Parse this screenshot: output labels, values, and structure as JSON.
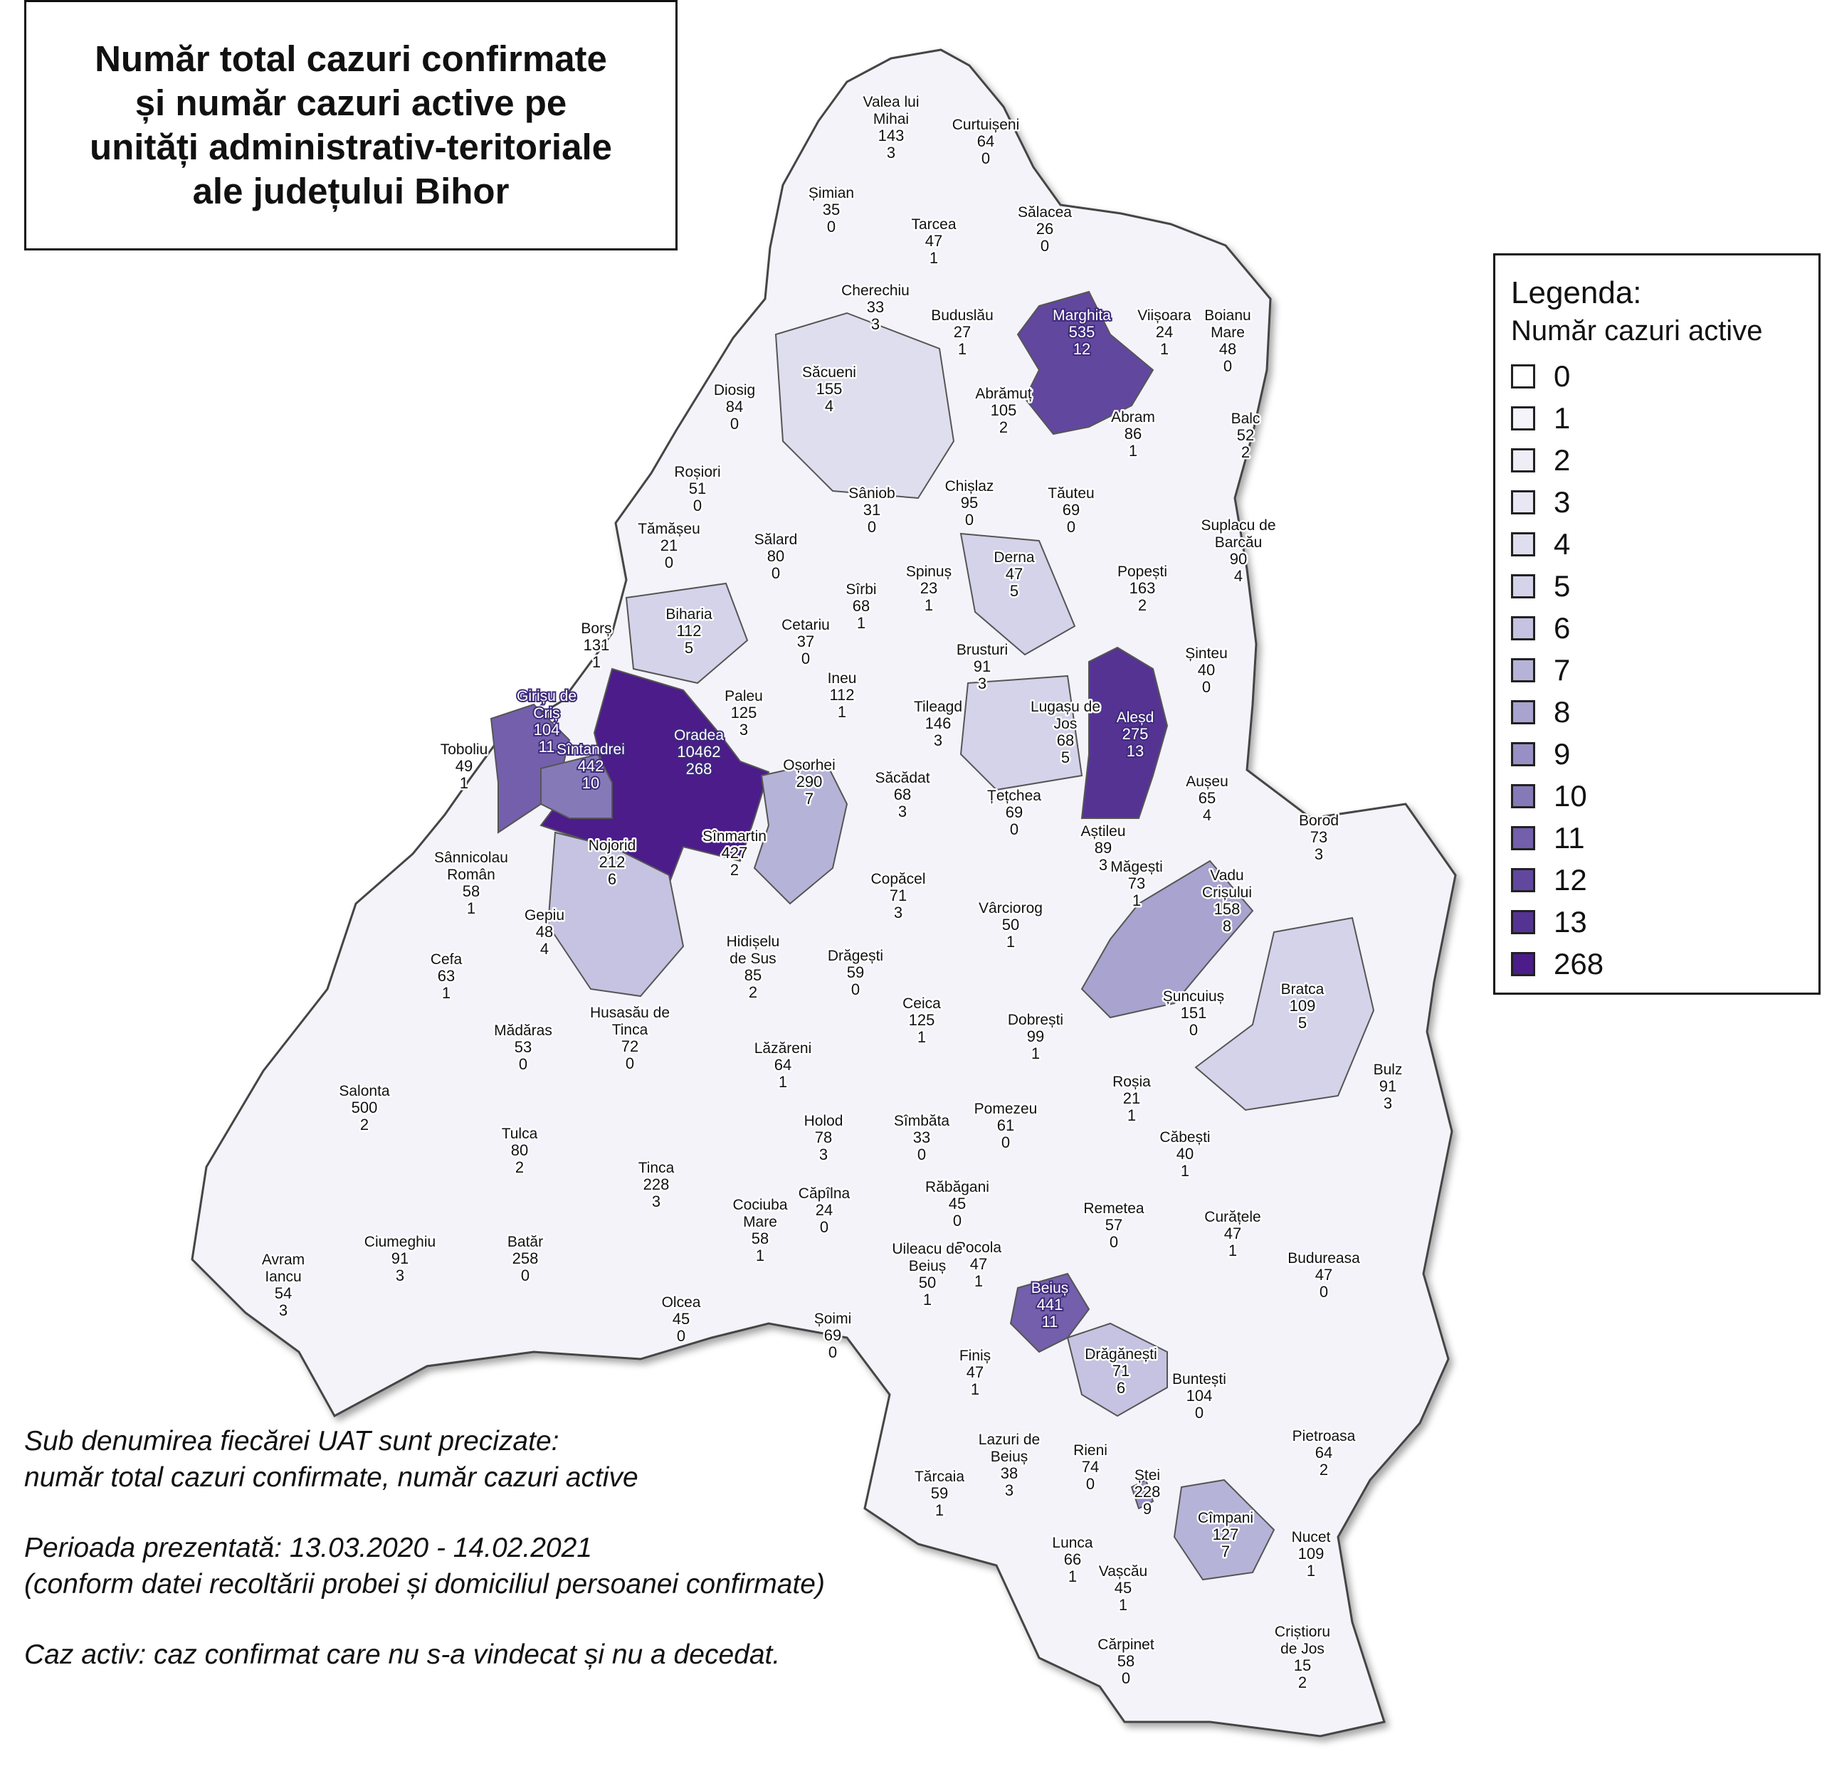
{
  "title": {
    "lines": [
      "Număr total cazuri confirmate",
      "și număr cazuri active pe",
      "unități administrativ-teritoriale",
      "ale județului Bihor"
    ]
  },
  "legend": {
    "title": "Legenda:",
    "subtitle": "Număr cazuri active",
    "items": [
      {
        "label": "0",
        "color": "#ffffff"
      },
      {
        "label": "1",
        "color": "#f5f4fa"
      },
      {
        "label": "2",
        "color": "#efeef7"
      },
      {
        "label": "3",
        "color": "#e8e7f3"
      },
      {
        "label": "4",
        "color": "#dfdeee"
      },
      {
        "label": "5",
        "color": "#d4d3ea"
      },
      {
        "label": "6",
        "color": "#c5c3e1"
      },
      {
        "label": "7",
        "color": "#b6b3d8"
      },
      {
        "label": "8",
        "color": "#a8a3cf"
      },
      {
        "label": "9",
        "color": "#9890c4"
      },
      {
        "label": "10",
        "color": "#8679b8"
      },
      {
        "label": "11",
        "color": "#735fab"
      },
      {
        "label": "12",
        "color": "#62479f"
      },
      {
        "label": "13",
        "color": "#553393"
      },
      {
        "label": "268",
        "color": "#4b1c8a"
      }
    ]
  },
  "notes": {
    "line1": "Sub denumirea fiecărei UAT sunt precizate:",
    "line2": "număr total cazuri confirmate, număr cazuri active",
    "line3": "Perioada prezentată: 13.03.2020 - 14.02.2021",
    "line4": "(conform datei recoltării probei și domiciliul persoanei confirmate)",
    "line5": "Caz activ: caz confirmat care nu s-a vindecat și nu a decedat."
  },
  "uats": [
    {
      "name": [
        "Valea lui",
        "Mihai"
      ],
      "total": "143",
      "active": 3
    },
    {
      "name": [
        "Curtuișeni"
      ],
      "total": "64",
      "active": 0
    },
    {
      "name": [
        "Șimian"
      ],
      "total": "35",
      "active": 0
    },
    {
      "name": [
        "Tarcea"
      ],
      "total": "47",
      "active": 1
    },
    {
      "name": [
        "Sălacea"
      ],
      "total": "26",
      "active": 0
    },
    {
      "name": [
        "Cherechiu"
      ],
      "total": "33",
      "active": 3
    },
    {
      "name": [
        "Buduslău"
      ],
      "total": "27",
      "active": 1
    },
    {
      "name": [
        "Marghita"
      ],
      "total": "535",
      "active": 12
    },
    {
      "name": [
        "Viișoara"
      ],
      "total": "24",
      "active": 1
    },
    {
      "name": [
        "Boianu",
        "Mare"
      ],
      "total": "48",
      "active": 0
    },
    {
      "name": [
        "Săcueni"
      ],
      "total": "155",
      "active": 4
    },
    {
      "name": [
        "Diosig"
      ],
      "total": "84",
      "active": 0
    },
    {
      "name": [
        "Abrămuț"
      ],
      "total": "105",
      "active": 2
    },
    {
      "name": [
        "Abram"
      ],
      "total": "86",
      "active": 1
    },
    {
      "name": [
        "Balc"
      ],
      "total": "52",
      "active": 2
    },
    {
      "name": [
        "Roșiori"
      ],
      "total": "51",
      "active": 0
    },
    {
      "name": [
        "Sâniob"
      ],
      "total": "31",
      "active": 0
    },
    {
      "name": [
        "Chișlaz"
      ],
      "total": "95",
      "active": 0
    },
    {
      "name": [
        "Tăuteu"
      ],
      "total": "69",
      "active": 0
    },
    {
      "name": [
        "Suplacu de",
        "Barcău"
      ],
      "total": "90",
      "active": 4
    },
    {
      "name": [
        "Tămășeu"
      ],
      "total": "21",
      "active": 0
    },
    {
      "name": [
        "Sălard"
      ],
      "total": "80",
      "active": 0
    },
    {
      "name": [
        "Derna"
      ],
      "total": "47",
      "active": 5
    },
    {
      "name": [
        "Popești"
      ],
      "total": "163",
      "active": 2
    },
    {
      "name": [
        "Spinuș"
      ],
      "total": "23",
      "active": 1
    },
    {
      "name": [
        "Sîrbi"
      ],
      "total": "68",
      "active": 1
    },
    {
      "name": [
        "Biharia"
      ],
      "total": "112",
      "active": 5
    },
    {
      "name": [
        "Borș"
      ],
      "total": "131",
      "active": 1
    },
    {
      "name": [
        "Cetariu"
      ],
      "total": "37",
      "active": 0
    },
    {
      "name": [
        "Brusturi"
      ],
      "total": "91",
      "active": 3
    },
    {
      "name": [
        "Șinteu"
      ],
      "total": "40",
      "active": 0
    },
    {
      "name": [
        "Ineu"
      ],
      "total": "112",
      "active": 1
    },
    {
      "name": [
        "Girișu de",
        "Criș"
      ],
      "total": "104",
      "active": 11
    },
    {
      "name": [
        "Paleu"
      ],
      "total": "125",
      "active": 3
    },
    {
      "name": [
        "Tileagd"
      ],
      "total": "146",
      "active": 3
    },
    {
      "name": [
        "Lugașu de",
        "Jos"
      ],
      "total": "68",
      "active": 5
    },
    {
      "name": [
        "Aleșd"
      ],
      "total": "275",
      "active": 13
    },
    {
      "name": [
        "Oradea"
      ],
      "total": "10462",
      "active": 268
    },
    {
      "name": [
        "Toboliu"
      ],
      "total": "49",
      "active": 1
    },
    {
      "name": [
        "Sîntandrei"
      ],
      "total": "442",
      "active": 10
    },
    {
      "name": [
        "Oșorhei"
      ],
      "total": "290",
      "active": 7
    },
    {
      "name": [
        "Săcădat"
      ],
      "total": "68",
      "active": 3
    },
    {
      "name": [
        "Aușeu"
      ],
      "total": "65",
      "active": 4
    },
    {
      "name": [
        "Țețchea"
      ],
      "total": "69",
      "active": 0
    },
    {
      "name": [
        "Borod"
      ],
      "total": "73",
      "active": 3
    },
    {
      "name": [
        "Aștileu"
      ],
      "total": "89",
      "active": 3
    },
    {
      "name": [
        "Nojorid"
      ],
      "total": "212",
      "active": 6
    },
    {
      "name": [
        "Sînmartin"
      ],
      "total": "427",
      "active": 2
    },
    {
      "name": [
        "Sânnicolau",
        "Român"
      ],
      "total": "58",
      "active": 1
    },
    {
      "name": [
        "Copăcel"
      ],
      "total": "71",
      "active": 3
    },
    {
      "name": [
        "Măgești"
      ],
      "total": "73",
      "active": 1
    },
    {
      "name": [
        "Vadu",
        "Crișului"
      ],
      "total": "158",
      "active": 8
    },
    {
      "name": [
        "Gepiu"
      ],
      "total": "48",
      "active": 4
    },
    {
      "name": [
        "Vârciorog"
      ],
      "total": "50",
      "active": 1
    },
    {
      "name": [
        "Cefa"
      ],
      "total": "63",
      "active": 1
    },
    {
      "name": [
        "Hidișelu",
        "de Sus"
      ],
      "total": "85",
      "active": 2
    },
    {
      "name": [
        "Drăgești"
      ],
      "total": "59",
      "active": 0
    },
    {
      "name": [
        "Bratca"
      ],
      "total": "109",
      "active": 5
    },
    {
      "name": [
        "Ceica"
      ],
      "total": "125",
      "active": 1
    },
    {
      "name": [
        "Șuncuiuș"
      ],
      "total": "151",
      "active": 0
    },
    {
      "name": [
        "Husasău de",
        "Tinca"
      ],
      "total": "72",
      "active": 0
    },
    {
      "name": [
        "Dobrești"
      ],
      "total": "99",
      "active": 1
    },
    {
      "name": [
        "Mădăras"
      ],
      "total": "53",
      "active": 0
    },
    {
      "name": [
        "Lăzăreni"
      ],
      "total": "64",
      "active": 1
    },
    {
      "name": [
        "Bulz"
      ],
      "total": "91",
      "active": 3
    },
    {
      "name": [
        "Salonta"
      ],
      "total": "500",
      "active": 2
    },
    {
      "name": [
        "Roșia"
      ],
      "total": "21",
      "active": 1
    },
    {
      "name": [
        "Holod"
      ],
      "total": "78",
      "active": 3
    },
    {
      "name": [
        "Pomezeu"
      ],
      "total": "61",
      "active": 0
    },
    {
      "name": [
        "Sîmbăta"
      ],
      "total": "33",
      "active": 0
    },
    {
      "name": [
        "Tulca"
      ],
      "total": "80",
      "active": 2
    },
    {
      "name": [
        "Căbești"
      ],
      "total": "40",
      "active": 1
    },
    {
      "name": [
        "Tinca"
      ],
      "total": "228",
      "active": 3
    },
    {
      "name": [
        "Căpîlna"
      ],
      "total": "24",
      "active": 0
    },
    {
      "name": [
        "Răbăgani"
      ],
      "total": "45",
      "active": 0
    },
    {
      "name": [
        "Remetea"
      ],
      "total": "57",
      "active": 0
    },
    {
      "name": [
        "Curățele"
      ],
      "total": "47",
      "active": 1
    },
    {
      "name": [
        "Cociuba",
        "Mare"
      ],
      "total": "58",
      "active": 1
    },
    {
      "name": [
        "Ciumeghiu"
      ],
      "total": "91",
      "active": 3
    },
    {
      "name": [
        "Batăr"
      ],
      "total": "258",
      "active": 0
    },
    {
      "name": [
        "Pocola"
      ],
      "total": "47",
      "active": 1
    },
    {
      "name": [
        "Uileacu de",
        "Beiuș"
      ],
      "total": "50",
      "active": 1
    },
    {
      "name": [
        "Budureasa"
      ],
      "total": "47",
      "active": 0
    },
    {
      "name": [
        "Avram",
        "Iancu"
      ],
      "total": "54",
      "active": 3
    },
    {
      "name": [
        "Beiuș"
      ],
      "total": "441",
      "active": 11
    },
    {
      "name": [
        "Olcea"
      ],
      "total": "45",
      "active": 0
    },
    {
      "name": [
        "Șoimi"
      ],
      "total": "69",
      "active": 0
    },
    {
      "name": [
        "Drăgănești"
      ],
      "total": "71",
      "active": 6
    },
    {
      "name": [
        "Finiș"
      ],
      "total": "47",
      "active": 1
    },
    {
      "name": [
        "Buntești"
      ],
      "total": "104",
      "active": 0
    },
    {
      "name": [
        "Lazuri de",
        "Beiuș"
      ],
      "total": "38",
      "active": 3
    },
    {
      "name": [
        "Rieni"
      ],
      "total": "74",
      "active": 0
    },
    {
      "name": [
        "Pietroasa"
      ],
      "total": "64",
      "active": 2
    },
    {
      "name": [
        "Tărcaia"
      ],
      "total": "59",
      "active": 1
    },
    {
      "name": [
        "Ștei"
      ],
      "total": "228",
      "active": 9
    },
    {
      "name": [
        "Cîmpani"
      ],
      "total": "127",
      "active": 7
    },
    {
      "name": [
        "Lunca"
      ],
      "total": "66",
      "active": 1
    },
    {
      "name": [
        "Nucet"
      ],
      "total": "109",
      "active": 1
    },
    {
      "name": [
        "Vașcău"
      ],
      "total": "45",
      "active": 1
    },
    {
      "name": [
        "Cărpinet"
      ],
      "total": "58",
      "active": 0
    },
    {
      "name": [
        "Criștioru",
        "de Jos"
      ],
      "total": "15",
      "active": 2
    }
  ]
}
